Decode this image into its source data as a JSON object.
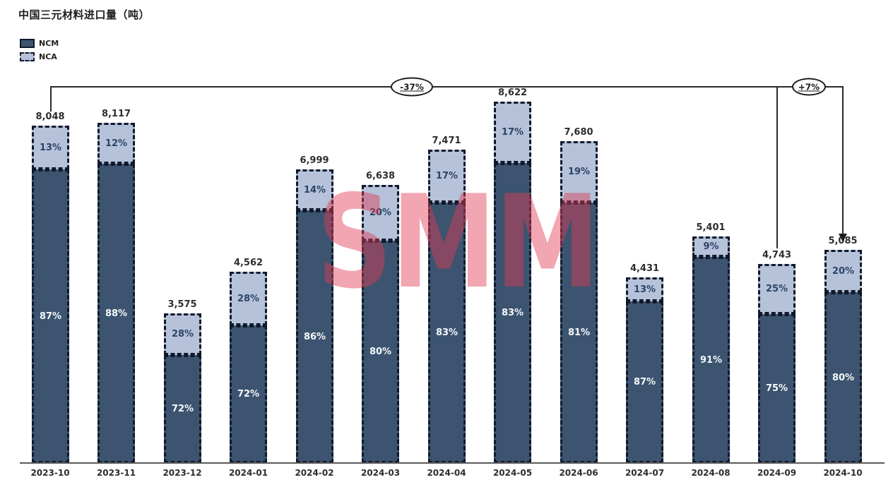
{
  "title": "中国三元材料进口量（吨）",
  "legend": {
    "items": [
      {
        "label": "NCM",
        "color": "#3c5470",
        "border": "solid"
      },
      {
        "label": "NCA",
        "color": "#b5c2d9",
        "border": "dashed"
      }
    ]
  },
  "watermark": "SMM",
  "colors": {
    "ncm_fill": "#3c5470",
    "nca_fill": "#b5c2d9",
    "bar_border": "#10192b",
    "pct_on_dark": "#f5f7fa",
    "pct_on_light": "#2d4468",
    "watermark_red": "#e03a52",
    "annotation": "#2b2b2b"
  },
  "annotations": [
    {
      "label": "-37%",
      "from": "2023-10",
      "to": "2024-10"
    },
    {
      "label": "+7%",
      "from": "2024-09",
      "to": "2024-10"
    }
  ],
  "chart_data": {
    "type": "bar",
    "stacked": true,
    "title": "中国三元材料进口量（吨）",
    "xlabel": "",
    "ylabel": "",
    "grid": false,
    "legend_position": "top-left",
    "ylim": [
      0,
      8700
    ],
    "categories": [
      "2023-10",
      "2023-11",
      "2023-12",
      "2024-01",
      "2024-02",
      "2024-03",
      "2024-04",
      "2024-05",
      "2024-06",
      "2024-07",
      "2024-08",
      "2024-09",
      "2024-10"
    ],
    "totals": [
      8048,
      8117,
      3575,
      4562,
      6999,
      6638,
      7471,
      8622,
      7680,
      4431,
      5401,
      4743,
      5085
    ],
    "series": [
      {
        "name": "NCM",
        "pct": [
          87,
          88,
          72,
          72,
          86,
          80,
          83,
          83,
          81,
          87,
          91,
          75,
          80
        ]
      },
      {
        "name": "NCA",
        "pct": [
          13,
          12,
          28,
          28,
          14,
          20,
          17,
          17,
          19,
          13,
          9,
          25,
          20
        ]
      }
    ]
  }
}
